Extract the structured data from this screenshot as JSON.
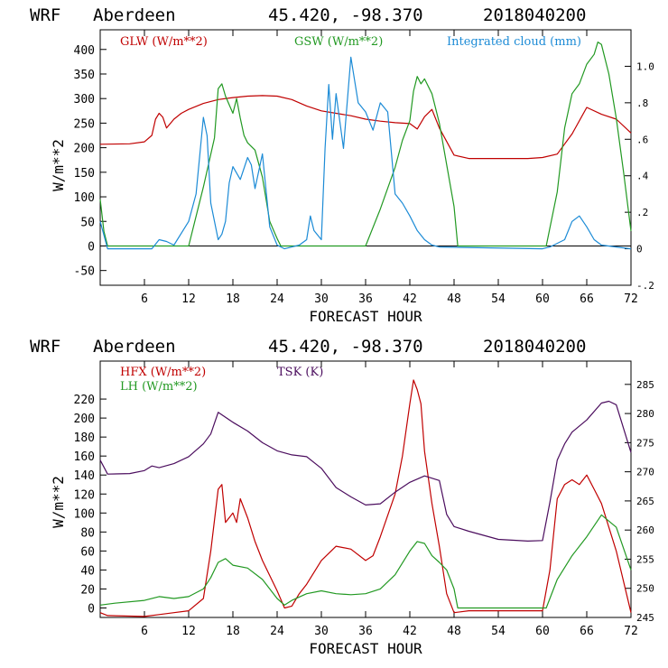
{
  "colors": {
    "red": "#c00000",
    "green": "#229922",
    "blue": "#1c8bd6",
    "purple": "#4b0d5e"
  },
  "chart_data": [
    {
      "type": "line",
      "header": {
        "model": "WRF",
        "station": "Aberdeen",
        "coords": "45.420, -98.370",
        "init": "2018040200"
      },
      "xlabel": "FORECAST HOUR",
      "ylabel": "W/m**2",
      "xlim": [
        0,
        72
      ],
      "ylim": [
        -80,
        440
      ],
      "y2lim": [
        -0.2,
        1.2
      ],
      "xticks": [
        "6",
        "12",
        "18",
        "24",
        "30",
        "36",
        "42",
        "48",
        "54",
        "60",
        "66",
        "72"
      ],
      "yticks": [
        "-50",
        "0",
        "50",
        "100",
        "150",
        "200",
        "250",
        "300",
        "350",
        "400"
      ],
      "y2ticks": [
        "-.2",
        "0",
        ".2",
        ".4",
        ".6",
        ".8",
        "1.0"
      ],
      "series": [
        {
          "name": "GLW (W/m**2)",
          "axis": "left",
          "color": "red",
          "x": [
            0,
            4,
            6,
            7,
            7.5,
            8,
            8.5,
            9,
            10,
            11,
            12,
            14,
            16,
            18,
            20,
            22,
            24,
            26,
            28,
            30,
            32,
            34,
            36,
            38,
            40,
            42,
            43,
            44,
            45,
            46,
            48,
            50,
            54,
            58,
            60,
            62,
            64,
            66,
            68,
            70,
            72
          ],
          "y": [
            207,
            208,
            212,
            225,
            258,
            270,
            262,
            240,
            258,
            270,
            278,
            290,
            298,
            302,
            305,
            306,
            305,
            298,
            285,
            275,
            270,
            265,
            258,
            254,
            251,
            249,
            238,
            263,
            278,
            240,
            185,
            178,
            178,
            178,
            180,
            187,
            228,
            282,
            268,
            258,
            230
          ]
        },
        {
          "name": "GSW (W/m**2)",
          "axis": "left",
          "color": "green",
          "x": [
            0,
            0.5,
            1,
            12,
            14,
            15.5,
            16,
            16.5,
            17,
            18,
            18.5,
            19,
            19.5,
            20,
            21,
            22,
            23,
            24,
            24.5,
            36,
            38,
            40,
            41,
            42,
            42.5,
            43,
            43.5,
            44,
            45,
            46,
            48,
            48.5,
            60,
            60.5,
            62,
            63,
            64,
            65,
            66,
            67,
            67.5,
            68,
            69,
            70,
            71,
            72
          ],
          "y": [
            95,
            30,
            0,
            0,
            120,
            220,
            320,
            330,
            305,
            270,
            300,
            260,
            225,
            210,
            195,
            140,
            50,
            15,
            0,
            0,
            75,
            160,
            215,
            255,
            315,
            345,
            330,
            340,
            310,
            250,
            80,
            0,
            0,
            0,
            110,
            240,
            310,
            330,
            370,
            390,
            415,
            410,
            350,
            260,
            150,
            30
          ]
        },
        {
          "name": "Integrated cloud (mm)",
          "axis": "right",
          "color": "blue",
          "x": [
            0,
            1,
            7,
            8,
            9,
            10,
            12,
            13,
            14,
            14.5,
            15,
            16,
            16.5,
            17,
            17.5,
            18,
            19,
            20,
            20.5,
            21,
            22,
            23,
            24,
            25,
            26,
            27,
            28,
            28.5,
            29,
            30,
            30.5,
            31,
            31.5,
            32,
            33,
            34,
            35,
            36,
            37,
            38,
            39,
            40,
            41,
            42,
            43,
            44,
            45,
            46,
            60,
            61,
            63,
            64,
            65,
            66,
            67,
            68,
            70,
            72
          ],
          "y": [
            0.15,
            0,
            0,
            0.05,
            0.04,
            0.02,
            0.15,
            0.3,
            0.72,
            0.62,
            0.25,
            0.05,
            0.08,
            0.15,
            0.36,
            0.45,
            0.38,
            0.5,
            0.46,
            0.33,
            0.52,
            0.12,
            0.02,
            0,
            0.01,
            0.02,
            0.05,
            0.18,
            0.1,
            0.05,
            0.55,
            0.9,
            0.6,
            0.85,
            0.55,
            1.05,
            0.8,
            0.75,
            0.65,
            0.8,
            0.75,
            0.3,
            0.25,
            0.18,
            0.1,
            0.05,
            0.02,
            0.01,
            0,
            0.01,
            0.05,
            0.15,
            0.18,
            0.12,
            0.05,
            0.02,
            0.01,
            0
          ]
        }
      ]
    },
    {
      "type": "line",
      "header": {
        "model": "WRF",
        "station": "Aberdeen",
        "coords": "45.420, -98.370",
        "init": "2018040200"
      },
      "xlabel": "FORECAST HOUR",
      "ylabel": "W/m**2",
      "xlim": [
        0,
        72
      ],
      "ylim": [
        -10,
        260
      ],
      "y2lim": [
        245,
        289
      ],
      "xticks": [
        "6",
        "12",
        "18",
        "24",
        "30",
        "36",
        "42",
        "48",
        "54",
        "60",
        "66",
        "72"
      ],
      "yticks": [
        "0",
        "20",
        "40",
        "60",
        "80",
        "100",
        "120",
        "140",
        "160",
        "180",
        "200",
        "220"
      ],
      "y2ticks": [
        "245",
        "250",
        "255",
        "260",
        "265",
        "270",
        "275",
        "280",
        "285"
      ],
      "series": [
        {
          "name": "HFX (W/m**2)",
          "axis": "left",
          "color": "red",
          "x": [
            0,
            1,
            6,
            8,
            10,
            12,
            14,
            15,
            16,
            16.5,
            17,
            18,
            18.5,
            19,
            20,
            21,
            22,
            24,
            25,
            26,
            27,
            28,
            30,
            32,
            34,
            36,
            37,
            38,
            40,
            41,
            42,
            42.5,
            43,
            43.5,
            44,
            45,
            46,
            47,
            48,
            50,
            60,
            61,
            62,
            63,
            64,
            65,
            66,
            67,
            68,
            70,
            72
          ],
          "y": [
            -5,
            -8,
            -9,
            -7,
            -5,
            -3,
            10,
            60,
            125,
            130,
            90,
            100,
            90,
            115,
            95,
            70,
            50,
            18,
            0,
            2,
            15,
            25,
            50,
            65,
            62,
            50,
            55,
            75,
            120,
            160,
            215,
            240,
            230,
            215,
            165,
            110,
            65,
            15,
            -5,
            -3,
            -3,
            40,
            115,
            130,
            135,
            130,
            140,
            125,
            110,
            60,
            -5
          ]
        },
        {
          "name": "LH (W/m**2)",
          "axis": "left",
          "color": "green",
          "x": [
            0,
            2,
            6,
            8,
            10,
            12,
            14,
            15,
            16,
            17,
            18,
            20,
            22,
            24,
            25,
            26,
            28,
            30,
            32,
            34,
            36,
            38,
            40,
            42,
            43,
            44,
            45,
            46,
            47,
            48,
            48.5,
            50,
            60,
            60.5,
            62,
            64,
            66,
            68,
            70,
            72
          ],
          "y": [
            3,
            5,
            8,
            12,
            10,
            12,
            20,
            32,
            48,
            52,
            45,
            42,
            30,
            10,
            3,
            8,
            15,
            18,
            15,
            14,
            15,
            20,
            35,
            60,
            70,
            68,
            55,
            48,
            40,
            20,
            0,
            0,
            0,
            0,
            30,
            55,
            75,
            98,
            85,
            40
          ]
        },
        {
          "name": "TSK (K)",
          "axis": "right",
          "color": "purple",
          "x": [
            0,
            1,
            4,
            6,
            7,
            8,
            10,
            12,
            14,
            15,
            16,
            18,
            20,
            22,
            24,
            26,
            28,
            30,
            32,
            34,
            36,
            38,
            40,
            42,
            44,
            46,
            47,
            48,
            50,
            54,
            58,
            60,
            61,
            62,
            63,
            64,
            66,
            68,
            69,
            70,
            72
          ],
          "y": [
            272,
            269.6,
            269.7,
            270.2,
            271.0,
            270.7,
            271.4,
            272.6,
            274.8,
            276.5,
            280.2,
            278.5,
            277.0,
            275.0,
            273.6,
            272.9,
            272.6,
            270.6,
            267.3,
            265.7,
            264.3,
            264.5,
            266.5,
            268.2,
            269.3,
            268.5,
            262.7,
            260.6,
            259.8,
            258.4,
            258.1,
            258.2,
            264.8,
            272.0,
            274.8,
            276.8,
            278.9,
            281.8,
            282.1,
            281.5,
            273.3
          ]
        }
      ]
    }
  ]
}
